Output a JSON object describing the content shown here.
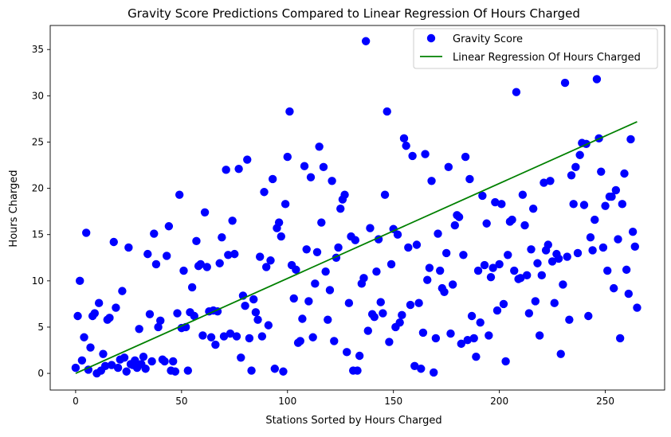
{
  "chart_data": {
    "type": "scatter",
    "title": "Gravity Score Predictions Compared to Linear Regression Of Hours Charged",
    "xlabel": "Stations Sorted by Hours Charged",
    "ylabel": "Hours Charged",
    "xlim": [
      -12,
      278
    ],
    "ylim": [
      -1.8,
      37.6
    ],
    "xticks": [
      0,
      50,
      100,
      150,
      200,
      250
    ],
    "yticks": [
      0,
      5,
      10,
      15,
      20,
      25,
      30,
      35
    ],
    "grid": false,
    "legend": {
      "position": "upper-right",
      "entries": [
        "Gravity Score",
        "Linear Regression Of Hours Charged"
      ]
    },
    "colors": {
      "scatter": "#0000ff",
      "line": "#008000"
    },
    "series": [
      {
        "name": "Gravity Score",
        "kind": "scatter",
        "points": [
          [
            0,
            0.6
          ],
          [
            1,
            6.2
          ],
          [
            2,
            10
          ],
          [
            3,
            1.4
          ],
          [
            4,
            3.9
          ],
          [
            5,
            15.2
          ],
          [
            6,
            0.4
          ],
          [
            7,
            2.8
          ],
          [
            8,
            6.2
          ],
          [
            9,
            6.5
          ],
          [
            10,
            0
          ],
          [
            11,
            7.6
          ],
          [
            12,
            0.3
          ],
          [
            13,
            2.1
          ],
          [
            14,
            0.8
          ],
          [
            15,
            5.8
          ],
          [
            16,
            6.0
          ],
          [
            17,
            0.9
          ],
          [
            18,
            14.2
          ],
          [
            19,
            7.1
          ],
          [
            20,
            0.6
          ],
          [
            21,
            1.5
          ],
          [
            22,
            8.9
          ],
          [
            23,
            1.7
          ],
          [
            24,
            0.2
          ],
          [
            25,
            13.6
          ],
          [
            26,
            1.0
          ],
          [
            27,
            0.9
          ],
          [
            28,
            1.4
          ],
          [
            29,
            0.6
          ],
          [
            30,
            4.8
          ],
          [
            31,
            1.0
          ],
          [
            32,
            1.8
          ],
          [
            33,
            0.5
          ],
          [
            34,
            12.9
          ],
          [
            35,
            6.4
          ],
          [
            36,
            1.3
          ],
          [
            37,
            15.1
          ],
          [
            38,
            11.8
          ],
          [
            39,
            5.0
          ],
          [
            40,
            5.7
          ],
          [
            41,
            1.5
          ],
          [
            42,
            1.3
          ],
          [
            43,
            12.7
          ],
          [
            44,
            15.9
          ],
          [
            45,
            0.3
          ],
          [
            46,
            1.3
          ],
          [
            47,
            0.2
          ],
          [
            48,
            6.5
          ],
          [
            49,
            19.3
          ],
          [
            50,
            4.9
          ],
          [
            51,
            11.1
          ],
          [
            52,
            5.0
          ],
          [
            53,
            0.3
          ],
          [
            54,
            6.6
          ],
          [
            55,
            9.3
          ],
          [
            56,
            6.2
          ],
          [
            57,
            14.3
          ],
          [
            58,
            11.6
          ],
          [
            59,
            11.8
          ],
          [
            60,
            4.1
          ],
          [
            61,
            17.4
          ],
          [
            62,
            11.5
          ],
          [
            63,
            6.7
          ],
          [
            64,
            3.9
          ],
          [
            65,
            6.8
          ],
          [
            66,
            3.1
          ],
          [
            67,
            6.7
          ],
          [
            68,
            11.9
          ],
          [
            69,
            14.7
          ],
          [
            70,
            4.0
          ],
          [
            71,
            22.0
          ],
          [
            72,
            12.8
          ],
          [
            73,
            4.3
          ],
          [
            74,
            16.5
          ],
          [
            75,
            12.9
          ],
          [
            76,
            4.0
          ],
          [
            77,
            22.1
          ],
          [
            78,
            1.7
          ],
          [
            79,
            8.4
          ],
          [
            80,
            7.3
          ],
          [
            81,
            23.1
          ],
          [
            82,
            3.8
          ],
          [
            83,
            0.3
          ],
          [
            84,
            8.0
          ],
          [
            85,
            6.6
          ],
          [
            86,
            5.8
          ],
          [
            87,
            12.6
          ],
          [
            88,
            4.0
          ],
          [
            89,
            19.6
          ],
          [
            90,
            11.5
          ],
          [
            91,
            5.2
          ],
          [
            92,
            12.2
          ],
          [
            93,
            21.0
          ],
          [
            94,
            0.5
          ],
          [
            95,
            15.7
          ],
          [
            96,
            16.3
          ],
          [
            97,
            14.8
          ],
          [
            98,
            0.2
          ],
          [
            99,
            18.3
          ],
          [
            100,
            23.4
          ],
          [
            101,
            28.3
          ],
          [
            102,
            11.7
          ],
          [
            103,
            8.1
          ],
          [
            104,
            11.2
          ],
          [
            105,
            3.3
          ],
          [
            106,
            3.5
          ],
          [
            107,
            5.9
          ],
          [
            108,
            22.4
          ],
          [
            109,
            13.4
          ],
          [
            110,
            7.8
          ],
          [
            111,
            21.2
          ],
          [
            112,
            3.9
          ],
          [
            113,
            9.7
          ],
          [
            114,
            13.1
          ],
          [
            115,
            24.5
          ],
          [
            116,
            16.3
          ],
          [
            117,
            22.3
          ],
          [
            118,
            11.0
          ],
          [
            119,
            5.8
          ],
          [
            120,
            9.0
          ],
          [
            121,
            20.8
          ],
          [
            122,
            3.5
          ],
          [
            123,
            12.5
          ],
          [
            124,
            13.6
          ],
          [
            125,
            17.8
          ],
          [
            126,
            18.8
          ],
          [
            127,
            19.3
          ],
          [
            128,
            2.3
          ],
          [
            129,
            7.6
          ],
          [
            130,
            14.8
          ],
          [
            131,
            0.3
          ],
          [
            132,
            14.4
          ],
          [
            133,
            0.3
          ],
          [
            134,
            1.9
          ],
          [
            135,
            9.7
          ],
          [
            136,
            10.3
          ],
          [
            137,
            35.9
          ],
          [
            138,
            4.6
          ],
          [
            139,
            15.7
          ],
          [
            140,
            6.4
          ],
          [
            141,
            6.1
          ],
          [
            142,
            11.0
          ],
          [
            143,
            14.5
          ],
          [
            144,
            7.7
          ],
          [
            145,
            6.5
          ],
          [
            146,
            19.3
          ],
          [
            147,
            28.3
          ],
          [
            148,
            3.4
          ],
          [
            149,
            11.8
          ],
          [
            150,
            15.6
          ],
          [
            151,
            5.0
          ],
          [
            152,
            15.0
          ],
          [
            153,
            5.5
          ],
          [
            154,
            6.3
          ],
          [
            155,
            25.4
          ],
          [
            156,
            24.6
          ],
          [
            157,
            13.6
          ],
          [
            158,
            7.4
          ],
          [
            159,
            23.5
          ],
          [
            160,
            0.8
          ],
          [
            161,
            13.9
          ],
          [
            162,
            7.6
          ],
          [
            163,
            0.5
          ],
          [
            164,
            4.4
          ],
          [
            165,
            23.7
          ],
          [
            166,
            10.1
          ],
          [
            167,
            11.4
          ],
          [
            168,
            20.8
          ],
          [
            169,
            0.1
          ],
          [
            170,
            3.8
          ],
          [
            171,
            15.1
          ],
          [
            172,
            11.1
          ],
          [
            173,
            9.2
          ],
          [
            174,
            8.8
          ],
          [
            175,
            13.0
          ],
          [
            176,
            22.3
          ],
          [
            177,
            4.3
          ],
          [
            178,
            9.6
          ],
          [
            179,
            16.0
          ],
          [
            180,
            17.1
          ],
          [
            181,
            16.9
          ],
          [
            182,
            3.2
          ],
          [
            183,
            12.8
          ],
          [
            184,
            23.4
          ],
          [
            185,
            3.6
          ],
          [
            186,
            21.0
          ],
          [
            187,
            6.2
          ],
          [
            188,
            3.8
          ],
          [
            189,
            1.8
          ],
          [
            190,
            11.1
          ],
          [
            191,
            5.5
          ],
          [
            192,
            19.2
          ],
          [
            193,
            11.7
          ],
          [
            194,
            16.2
          ],
          [
            195,
            4.1
          ],
          [
            196,
            10.4
          ],
          [
            197,
            11.4
          ],
          [
            198,
            18.5
          ],
          [
            199,
            6.8
          ],
          [
            200,
            11.8
          ],
          [
            201,
            18.3
          ],
          [
            202,
            7.5
          ],
          [
            203,
            1.3
          ],
          [
            204,
            12.8
          ],
          [
            205,
            16.4
          ],
          [
            206,
            16.6
          ],
          [
            207,
            11.1
          ],
          [
            208,
            30.4
          ],
          [
            209,
            10.2
          ],
          [
            210,
            10.3
          ],
          [
            211,
            19.3
          ],
          [
            212,
            16.0
          ],
          [
            213,
            10.6
          ],
          [
            214,
            6.5
          ],
          [
            215,
            13.4
          ],
          [
            216,
            17.8
          ],
          [
            217,
            7.8
          ],
          [
            218,
            11.9
          ],
          [
            219,
            4.1
          ],
          [
            220,
            10.6
          ],
          [
            221,
            20.6
          ],
          [
            222,
            13.3
          ],
          [
            223,
            13.9
          ],
          [
            224,
            20.8
          ],
          [
            225,
            12.1
          ],
          [
            226,
            7.6
          ],
          [
            227,
            12.9
          ],
          [
            228,
            12.4
          ],
          [
            229,
            2.1
          ],
          [
            230,
            9.6
          ],
          [
            231,
            31.4
          ],
          [
            232,
            12.6
          ],
          [
            233,
            5.8
          ],
          [
            234,
            21.4
          ],
          [
            235,
            18.3
          ],
          [
            236,
            22.3
          ],
          [
            237,
            13.0
          ],
          [
            238,
            23.6
          ],
          [
            239,
            24.9
          ],
          [
            240,
            18.2
          ],
          [
            241,
            24.8
          ],
          [
            242,
            6.2
          ],
          [
            243,
            14.7
          ],
          [
            244,
            13.3
          ],
          [
            245,
            16.6
          ],
          [
            246,
            31.8
          ],
          [
            247,
            25.4
          ],
          [
            248,
            21.8
          ],
          [
            249,
            13.6
          ],
          [
            250,
            18.1
          ],
          [
            251,
            11.1
          ],
          [
            252,
            19.1
          ],
          [
            253,
            19.1
          ],
          [
            254,
            9.2
          ],
          [
            255,
            19.8
          ],
          [
            256,
            14.5
          ],
          [
            257,
            3.8
          ],
          [
            258,
            18.3
          ],
          [
            259,
            21.6
          ],
          [
            260,
            11.2
          ],
          [
            261,
            8.6
          ],
          [
            262,
            25.3
          ],
          [
            263,
            15.3
          ],
          [
            264,
            13.7
          ],
          [
            265,
            7.1
          ]
        ]
      },
      {
        "name": "Linear Regression Of Hours Charged",
        "kind": "line",
        "points": [
          [
            0,
            0
          ],
          [
            265,
            27.2
          ]
        ]
      }
    ]
  }
}
